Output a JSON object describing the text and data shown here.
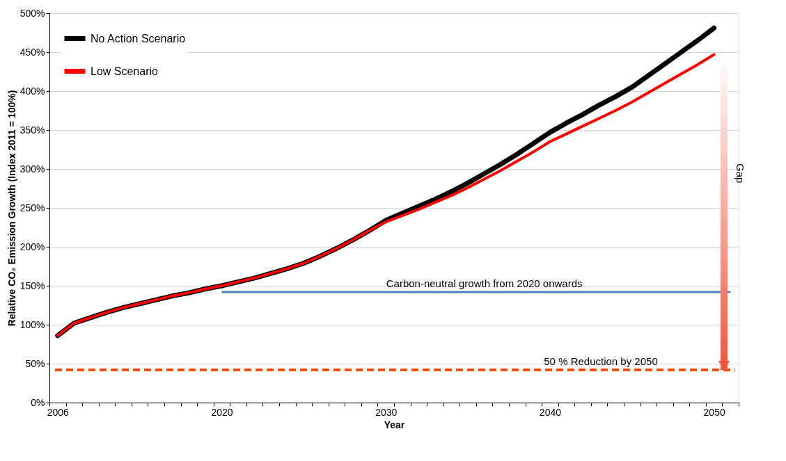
{
  "chart_data": {
    "type": "line",
    "xlabel": "Year",
    "ylabel": "Relative CO₂ Emission Growth (Index 2011 = 100%)",
    "categories": [
      "2006",
      null,
      null,
      null,
      null,
      null,
      null,
      null,
      null,
      null,
      "2020",
      null,
      null,
      null,
      null,
      null,
      null,
      null,
      null,
      null,
      "2030",
      null,
      null,
      null,
      null,
      null,
      null,
      null,
      null,
      null,
      "2040",
      null,
      null,
      null,
      null,
      null,
      null,
      null,
      null,
      null,
      "2050",
      null
    ],
    "series": [
      {
        "name": "No Action Scenario",
        "color": "#000000",
        "values": [
          86,
          102,
          109,
          116,
          122,
          127,
          132,
          137,
          141,
          146,
          150,
          155,
          160,
          166,
          172,
          179,
          188,
          198,
          209,
          221,
          234,
          243,
          252,
          261,
          271,
          282,
          294,
          306,
          319,
          333,
          347,
          359,
          370,
          382,
          393,
          405,
          420,
          435,
          450,
          465,
          481,
          null
        ]
      },
      {
        "name": "Low Scenario",
        "color": "#ff0000",
        "values": [
          86,
          102,
          109,
          116,
          122,
          127,
          132,
          137,
          141,
          146,
          150,
          155,
          160,
          166,
          172,
          179,
          188,
          198,
          209,
          221,
          232,
          240,
          248,
          257,
          266,
          276,
          287,
          298,
          310,
          322,
          335,
          345,
          355,
          365,
          375,
          386,
          398,
          410,
          422,
          434,
          447,
          null
        ]
      },
      {
        "name": "Carbon-neutral growth from 2020 onwards",
        "color": "#4a7ebb",
        "values": [
          null,
          null,
          null,
          null,
          null,
          null,
          null,
          null,
          null,
          null,
          142,
          142,
          142,
          142,
          142,
          142,
          142,
          142,
          142,
          142,
          142,
          142,
          142,
          142,
          142,
          142,
          142,
          142,
          142,
          142,
          142,
          142,
          142,
          142,
          142,
          142,
          142,
          142,
          142,
          142,
          142,
          142
        ]
      }
    ],
    "ref_lines": [
      {
        "axis": "y",
        "value": 42,
        "label": "50 % Reduction by 2050",
        "color": "#ff4500",
        "line_style": "dashed"
      }
    ],
    "annotations": [
      "Gap"
    ],
    "ylim": [
      0,
      500
    ],
    "yticks": [
      {
        "value": 0,
        "label": "0%"
      },
      {
        "value": 50,
        "label": "50%"
      },
      {
        "value": 100,
        "label": "100%"
      },
      {
        "value": 150,
        "label": "150%"
      },
      {
        "value": 200,
        "label": "200%"
      },
      {
        "value": 250,
        "label": "250%"
      },
      {
        "value": 300,
        "label": "300%"
      },
      {
        "value": 350,
        "label": "350%"
      },
      {
        "value": 400,
        "label": "400%"
      },
      {
        "value": 450,
        "label": "450%"
      },
      {
        "value": 500,
        "label": "500%"
      }
    ],
    "grid": "y",
    "legend": "top left"
  }
}
